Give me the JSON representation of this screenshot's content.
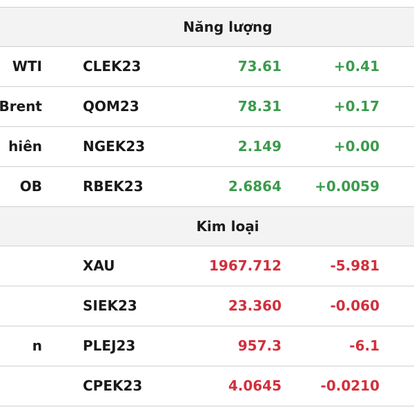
{
  "sections": [
    {
      "title": "Năng lượng",
      "rows": [
        {
          "name": "WTI",
          "code": "CLEK23",
          "price": "73.61",
          "change": "+0.41",
          "direction": "up"
        },
        {
          "name": "Brent",
          "code": "QOM23",
          "price": "78.31",
          "change": "+0.17",
          "direction": "up"
        },
        {
          "name": "hiên",
          "code": "NGEK23",
          "price": "2.149",
          "change": "+0.00",
          "direction": "up"
        },
        {
          "name": "OB",
          "code": "RBEK23",
          "price": "2.6864",
          "change": "+0.0059",
          "direction": "up"
        }
      ]
    },
    {
      "title": "Kim loại",
      "rows": [
        {
          "name": "",
          "code": "XAU",
          "price": "1967.712",
          "change": "-5.981",
          "direction": "down"
        },
        {
          "name": "",
          "code": "SIEK23",
          "price": "23.360",
          "change": "-0.060",
          "direction": "down"
        },
        {
          "name": "n",
          "code": "PLEJ23",
          "price": "957.3",
          "change": "-6.1",
          "direction": "down"
        },
        {
          "name": "",
          "code": "CPEK23",
          "price": "4.0645",
          "change": "-0.0210",
          "direction": "down"
        }
      ]
    }
  ],
  "colors": {
    "up": "#3c9a4c",
    "down": "#d22f3c",
    "header_bg": "#f3f3f3",
    "border": "#cfcfcf"
  }
}
